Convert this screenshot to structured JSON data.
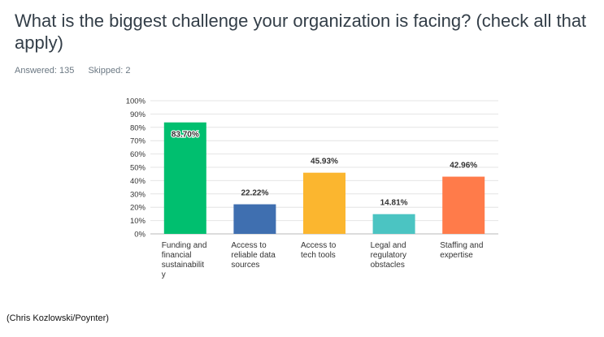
{
  "question": {
    "title": "What is the biggest challenge your organization is facing? (check all that apply)"
  },
  "stats": {
    "answered": "Answered: 135",
    "skipped": "Skipped: 2"
  },
  "caption": "(Chris Kozlowski/Poynter)",
  "chart_data": {
    "type": "bar",
    "categories": [
      [
        "Funding and",
        "financial",
        "sustainabilit",
        "y"
      ],
      [
        "Access to",
        "reliable data",
        "sources"
      ],
      [
        "Access to",
        "tech tools"
      ],
      [
        "Legal and",
        "regulatory",
        "obstacles"
      ],
      [
        "Staffing and",
        "expertise"
      ]
    ],
    "values": [
      83.7,
      22.22,
      45.93,
      14.81,
      42.96
    ],
    "value_labels": [
      "83.70%",
      "22.22%",
      "45.93%",
      "14.81%",
      "42.96%"
    ],
    "colors": [
      "#00bf6f",
      "#3f6fb0",
      "#fbb62f",
      "#4bc4c2",
      "#ff7b4a"
    ],
    "ylim": [
      0,
      100
    ],
    "yticks": [
      "0%",
      "10%",
      "20%",
      "30%",
      "40%",
      "50%",
      "60%",
      "70%",
      "80%",
      "90%",
      "100%"
    ],
    "grid": true,
    "xlabel": "",
    "ylabel": ""
  }
}
